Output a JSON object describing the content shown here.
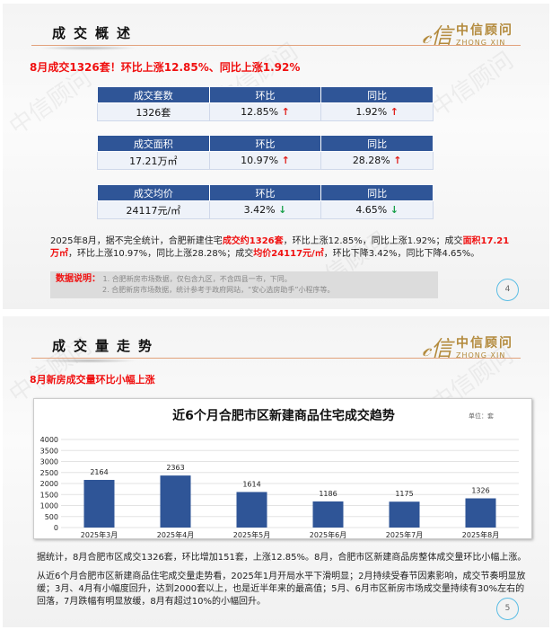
{
  "logo": {
    "cn": "中信顾问",
    "en": "ZHONG XIN",
    "mark": "中信"
  },
  "watermark": "中信顾问",
  "slide1": {
    "title": "成交概述",
    "headline": "8月成交1326套！环比上涨12.85%、同比上涨1.92%",
    "tables": [
      {
        "headers": [
          "成交套数",
          "环比",
          "同比"
        ],
        "values": [
          "1326套",
          "12.85%",
          "1.92%"
        ],
        "arrows": [
          "↑",
          "↑"
        ],
        "dirs": [
          "up",
          "up"
        ]
      },
      {
        "headers": [
          "成交面积",
          "环比",
          "同比"
        ],
        "values": [
          "17.21万㎡",
          "10.97%",
          "28.28%"
        ],
        "arrows": [
          "↑",
          "↑"
        ],
        "dirs": [
          "up",
          "up"
        ]
      },
      {
        "headers": [
          "成交均价",
          "环比",
          "同比"
        ],
        "values": [
          "24117元/㎡",
          "3.42%",
          "4.65%"
        ],
        "arrows": [
          "↓",
          "↓"
        ],
        "dirs": [
          "down",
          "down"
        ]
      }
    ],
    "paragraph": {
      "p1": "2025年8月，据不完全统计，合肥新建住宅",
      "h1": "成交约1326套",
      "p2": "，环比上涨12.85%，同比上涨1.92%；成交",
      "h2": "面积17.21万㎡",
      "p3": "，环比上涨10.97%，同比上涨28.28%；成交",
      "h3": "均价24117元/㎡",
      "p4": "，环比下降3.42%，同比下降4.65%。"
    },
    "note": {
      "label": "数据说明：",
      "line1": "1. 合肥新房市场数据，仅包含九区，不含四县一市，下同。",
      "line2": "2. 合肥新房市场数据，统计参考于政府网站，“安心选房助手”小程序等。"
    },
    "page": "4"
  },
  "slide2": {
    "title": "成交量走势",
    "headline": "8月新房成交量环比小幅上涨",
    "para1": "据统计，8月合肥市区成交1326套，环比增加151套，上涨12.85%。8月，合肥市区新建商品房整体成交量环比小幅上涨。",
    "para2": "从近6个月合肥市区新建商品住宅成交量走势看，2025年1月开局水平下滑明显；2月持续受春节因素影响，成交节奏明显放缓；3月、4月有小幅度回升，达到2000套以上，也是近半年来的最高值；5月、6月市区新房市场成交量持续有30%左右的回落，7月跌幅有明显放缓，8月有超过10%的小幅回升。",
    "page": "5"
  },
  "chart_data": {
    "type": "bar",
    "title": "近6个月合肥市区新建商品住宅成交趋势",
    "unit": "单位：套",
    "categories": [
      "2025年3月",
      "2025年4月",
      "2025年5月",
      "2025年6月",
      "2025年7月",
      "2025年8月"
    ],
    "values": [
      2164,
      2363,
      1614,
      1186,
      1175,
      1326
    ],
    "ylim": [
      0,
      4000
    ],
    "yticks": [
      "0",
      "500",
      "1000",
      "1500",
      "2000",
      "2500",
      "3000",
      "3500",
      "4000"
    ],
    "grid": true,
    "bar_color": "#2f5597"
  }
}
